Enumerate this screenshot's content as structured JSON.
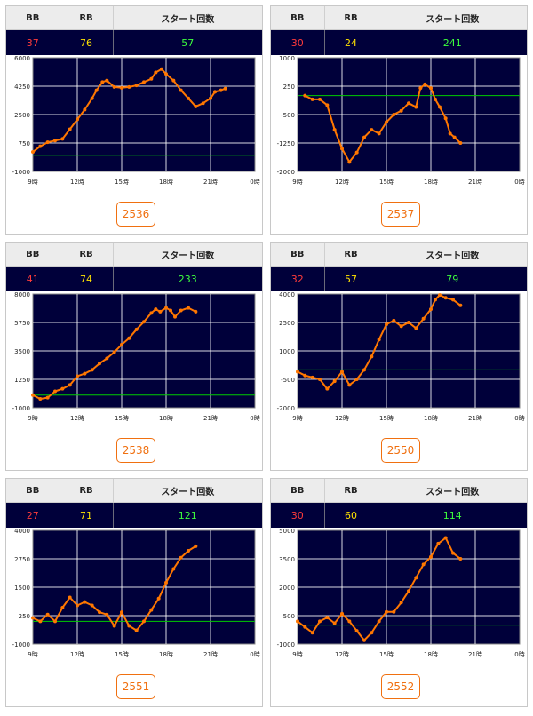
{
  "header": {
    "bb": "BB",
    "rb": "RB",
    "start": "スタート回数"
  },
  "colors": {
    "plot_bg": "#00003a",
    "grid": "#ffffff",
    "line": "#ff7700",
    "baseline": "#00cc00",
    "bb": "#ff3b3b",
    "rb": "#ffe300",
    "start": "#3dff3d",
    "button": "#f07010"
  },
  "panels": [
    {
      "bb": "37",
      "rb": "76",
      "start": "57",
      "machine": "2536",
      "chart_data": {
        "type": "line",
        "x_ticks": [
          "9時",
          "12時",
          "15時",
          "18時",
          "21時",
          "0時"
        ],
        "y_ticks": [
          "6000",
          "4250",
          "2500",
          "750",
          "-1000"
        ],
        "ylim": [
          -1000,
          6000
        ],
        "xlim": [
          9,
          24
        ],
        "baseline": 0,
        "series": [
          {
            "x": [
              9.0,
              9.5,
              10.0,
              10.5,
              11.0,
              11.5,
              12.0,
              12.5,
              13.0,
              13.3,
              13.7,
              14.0,
              14.5,
              15.0,
              15.5,
              16.0,
              16.5,
              17.0,
              17.3,
              17.7,
              18.0,
              18.5,
              19.0,
              19.5,
              20.0,
              20.5,
              21.0,
              21.3,
              21.7,
              22.0
            ],
            "y": [
              200,
              550,
              800,
              900,
              1000,
              1600,
              2200,
              2800,
              3500,
              4000,
              4500,
              4600,
              4200,
              4150,
              4200,
              4300,
              4500,
              4700,
              5100,
              5300,
              5000,
              4600,
              4000,
              3500,
              3000,
              3200,
              3500,
              3900,
              4000,
              4100
            ]
          }
        ]
      }
    },
    {
      "bb": "30",
      "rb": "24",
      "start": "241",
      "machine": "2537",
      "chart_data": {
        "type": "line",
        "x_ticks": [
          "9時",
          "12時",
          "15時",
          "18時",
          "21時",
          "0時"
        ],
        "y_ticks": [
          "1000",
          "250",
          "-500",
          "-1250",
          "-2000"
        ],
        "ylim": [
          -2000,
          1000
        ],
        "xlim": [
          9,
          24
        ],
        "baseline": 0,
        "series": [
          {
            "x": [
              9.5,
              10.0,
              10.5,
              11.0,
              11.5,
              12.0,
              12.5,
              13.0,
              13.5,
              14.0,
              14.5,
              15.0,
              15.5,
              16.0,
              16.5,
              17.0,
              17.3,
              17.6,
              18.0,
              18.3,
              18.6,
              19.0,
              19.3,
              19.6,
              20.0
            ],
            "y": [
              0,
              -100,
              -100,
              -250,
              -900,
              -1400,
              -1750,
              -1500,
              -1100,
              -900,
              -1000,
              -700,
              -500,
              -400,
              -200,
              -300,
              200,
              300,
              200,
              -100,
              -300,
              -600,
              -1000,
              -1100,
              -1250
            ]
          }
        ]
      }
    },
    {
      "bb": "41",
      "rb": "74",
      "start": "233",
      "machine": "2538",
      "chart_data": {
        "type": "line",
        "x_ticks": [
          "9時",
          "12時",
          "15時",
          "18時",
          "21時",
          "0時"
        ],
        "y_ticks": [
          "8000",
          "5750",
          "3500",
          "1250",
          "-1000"
        ],
        "ylim": [
          -1000,
          8000
        ],
        "xlim": [
          9,
          24
        ],
        "baseline": 0,
        "series": [
          {
            "x": [
              9.0,
              9.5,
              10.0,
              10.5,
              11.0,
              11.5,
              12.0,
              12.5,
              13.0,
              13.5,
              14.0,
              14.5,
              15.0,
              15.5,
              16.0,
              16.5,
              17.0,
              17.3,
              17.6,
              18.0,
              18.3,
              18.6,
              19.0,
              19.5,
              20.0
            ],
            "y": [
              0,
              -300,
              -200,
              300,
              500,
              800,
              1500,
              1700,
              2000,
              2500,
              2900,
              3400,
              4000,
              4500,
              5200,
              5800,
              6500,
              6800,
              6600,
              6900,
              6700,
              6200,
              6700,
              6900,
              6600
            ]
          }
        ]
      }
    },
    {
      "bb": "32",
      "rb": "57",
      "start": "79",
      "machine": "2550",
      "chart_data": {
        "type": "line",
        "x_ticks": [
          "9時",
          "12時",
          "15時",
          "18時",
          "21時",
          "0時"
        ],
        "y_ticks": [
          "4000",
          "2500",
          "1000",
          "-500",
          "-2000"
        ],
        "ylim": [
          -2000,
          4000
        ],
        "xlim": [
          9,
          24
        ],
        "baseline": 0,
        "series": [
          {
            "x": [
              9.0,
              9.5,
              10.0,
              10.5,
              11.0,
              11.5,
              12.0,
              12.5,
              13.0,
              13.5,
              14.0,
              14.5,
              15.0,
              15.5,
              16.0,
              16.5,
              17.0,
              17.5,
              18.0,
              18.3,
              18.6,
              19.0,
              19.5,
              20.0
            ],
            "y": [
              -100,
              -300,
              -400,
              -500,
              -1000,
              -600,
              -100,
              -800,
              -500,
              0,
              700,
              1600,
              2400,
              2600,
              2300,
              2500,
              2200,
              2700,
              3200,
              3700,
              3950,
              3800,
              3700,
              3400
            ]
          }
        ]
      }
    },
    {
      "bb": "27",
      "rb": "71",
      "start": "121",
      "machine": "2551",
      "chart_data": {
        "type": "line",
        "x_ticks": [
          "9時",
          "12時",
          "15時",
          "18時",
          "21時",
          "0時"
        ],
        "y_ticks": [
          "4000",
          "2750",
          "1500",
          "250",
          "-1000"
        ],
        "ylim": [
          -1000,
          4000
        ],
        "xlim": [
          9,
          24
        ],
        "baseline": 0,
        "series": [
          {
            "x": [
              9.0,
              9.5,
              10.0,
              10.5,
              11.0,
              11.5,
              12.0,
              12.5,
              13.0,
              13.5,
              14.0,
              14.5,
              15.0,
              15.5,
              16.0,
              16.5,
              17.0,
              17.5,
              18.0,
              18.5,
              19.0,
              19.5,
              20.0
            ],
            "y": [
              150,
              0,
              300,
              0,
              600,
              1050,
              700,
              850,
              700,
              400,
              300,
              -200,
              400,
              -200,
              -400,
              0,
              500,
              1000,
              1700,
              2300,
              2800,
              3100,
              3300
            ]
          }
        ]
      }
    },
    {
      "bb": "30",
      "rb": "60",
      "start": "114",
      "machine": "2552",
      "chart_data": {
        "type": "line",
        "x_ticks": [
          "9時",
          "12時",
          "15時",
          "18時",
          "21時",
          "0時"
        ],
        "y_ticks": [
          "5000",
          "3500",
          "2000",
          "500",
          "-1000"
        ],
        "ylim": [
          -1000,
          5000
        ],
        "xlim": [
          9,
          24
        ],
        "baseline": 0,
        "series": [
          {
            "x": [
              9.0,
              9.5,
              10.0,
              10.5,
              11.0,
              11.5,
              12.0,
              12.5,
              13.0,
              13.5,
              14.0,
              14.5,
              15.0,
              15.5,
              16.0,
              16.5,
              17.0,
              17.5,
              18.0,
              18.5,
              19.0,
              19.5,
              20.0
            ],
            "y": [
              200,
              -100,
              -400,
              200,
              400,
              100,
              600,
              200,
              -300,
              -800,
              -400,
              200,
              700,
              700,
              1200,
              1800,
              2500,
              3200,
              3600,
              4300,
              4600,
              3800,
              3500
            ]
          }
        ]
      }
    }
  ]
}
